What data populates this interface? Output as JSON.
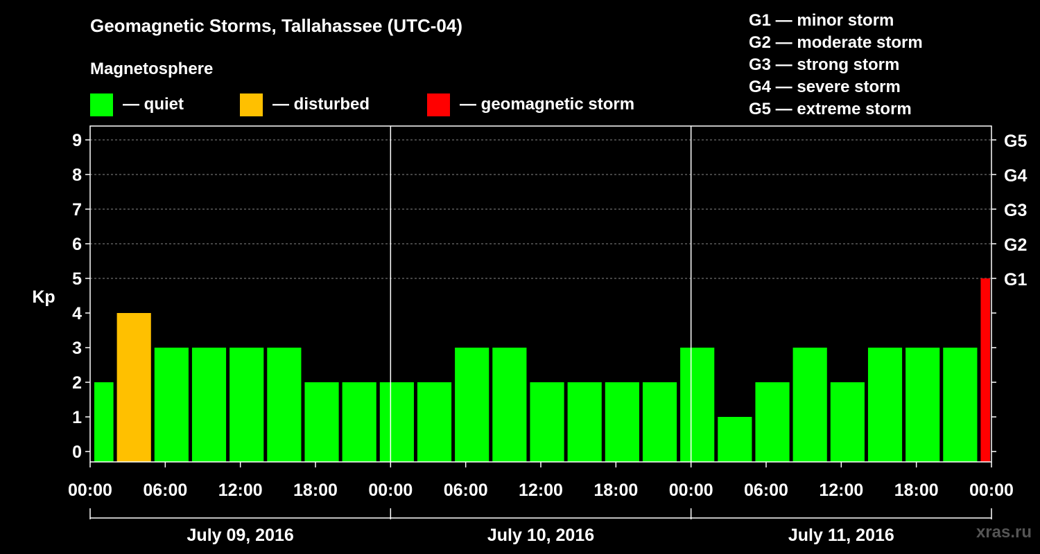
{
  "chart_data": {
    "type": "bar",
    "title": "Geomagnetic Storms, Tallahassee (UTC-04)",
    "subtitle": "Magnetosphere",
    "ylabel": "Kp",
    "ylim": [
      0,
      9
    ],
    "y_ticks": [
      "0",
      "1",
      "2",
      "3",
      "4",
      "5",
      "6",
      "7",
      "8",
      "9"
    ],
    "right_ticks": [
      {
        "kp": 5,
        "label": "G1"
      },
      {
        "kp": 6,
        "label": "G2"
      },
      {
        "kp": 7,
        "label": "G3"
      },
      {
        "kp": 8,
        "label": "G4"
      },
      {
        "kp": 9,
        "label": "G5"
      }
    ],
    "grid": true,
    "legend": [
      {
        "label": "— quiet",
        "color": "#00ff00"
      },
      {
        "label": "— disturbed",
        "color": "#ffc000"
      },
      {
        "label": "— geomagnetic storm",
        "color": "#ff0000"
      }
    ],
    "storm_scale": [
      "G1 — minor storm",
      "G2 — moderate storm",
      "G3 — strong storm",
      "G4 — severe storm",
      "G5 — extreme storm"
    ],
    "x_hour_range": [
      0,
      72
    ],
    "x_ticks": [
      {
        "hour": 0,
        "label": "00:00"
      },
      {
        "hour": 6,
        "label": "06:00"
      },
      {
        "hour": 12,
        "label": "12:00"
      },
      {
        "hour": 18,
        "label": "18:00"
      },
      {
        "hour": 24,
        "label": "00:00"
      },
      {
        "hour": 30,
        "label": "06:00"
      },
      {
        "hour": 36,
        "label": "12:00"
      },
      {
        "hour": 42,
        "label": "18:00"
      },
      {
        "hour": 48,
        "label": "00:00"
      },
      {
        "hour": 54,
        "label": "06:00"
      },
      {
        "hour": 60,
        "label": "12:00"
      },
      {
        "hour": 66,
        "label": "18:00"
      },
      {
        "hour": 72,
        "label": "00:00"
      }
    ],
    "days": [
      {
        "label": "July 09, 2016",
        "start": 0,
        "end": 24
      },
      {
        "label": "July 10, 2016",
        "start": 24,
        "end": 48
      },
      {
        "label": "July 11, 2016",
        "start": 48,
        "end": 72
      }
    ],
    "bars": [
      {
        "start": 0,
        "end": 2,
        "kp": 2,
        "status": "quiet"
      },
      {
        "start": 2,
        "end": 5,
        "kp": 4,
        "status": "disturbed"
      },
      {
        "start": 5,
        "end": 8,
        "kp": 3,
        "status": "quiet"
      },
      {
        "start": 8,
        "end": 11,
        "kp": 3,
        "status": "quiet"
      },
      {
        "start": 11,
        "end": 14,
        "kp": 3,
        "status": "quiet"
      },
      {
        "start": 14,
        "end": 17,
        "kp": 3,
        "status": "quiet"
      },
      {
        "start": 17,
        "end": 20,
        "kp": 2,
        "status": "quiet"
      },
      {
        "start": 20,
        "end": 23,
        "kp": 2,
        "status": "quiet"
      },
      {
        "start": 23,
        "end": 26,
        "kp": 2,
        "status": "quiet"
      },
      {
        "start": 26,
        "end": 29,
        "kp": 2,
        "status": "quiet"
      },
      {
        "start": 29,
        "end": 32,
        "kp": 3,
        "status": "quiet"
      },
      {
        "start": 32,
        "end": 35,
        "kp": 3,
        "status": "quiet"
      },
      {
        "start": 35,
        "end": 38,
        "kp": 2,
        "status": "quiet"
      },
      {
        "start": 38,
        "end": 41,
        "kp": 2,
        "status": "quiet"
      },
      {
        "start": 41,
        "end": 44,
        "kp": 2,
        "status": "quiet"
      },
      {
        "start": 44,
        "end": 47,
        "kp": 2,
        "status": "quiet"
      },
      {
        "start": 47,
        "end": 50,
        "kp": 3,
        "status": "quiet"
      },
      {
        "start": 50,
        "end": 53,
        "kp": 1,
        "status": "quiet"
      },
      {
        "start": 53,
        "end": 56,
        "kp": 2,
        "status": "quiet"
      },
      {
        "start": 56,
        "end": 59,
        "kp": 3,
        "status": "quiet"
      },
      {
        "start": 59,
        "end": 62,
        "kp": 2,
        "status": "quiet"
      },
      {
        "start": 62,
        "end": 65,
        "kp": 3,
        "status": "quiet"
      },
      {
        "start": 65,
        "end": 68,
        "kp": 3,
        "status": "quiet"
      },
      {
        "start": 68,
        "end": 71,
        "kp": 3,
        "status": "quiet"
      },
      {
        "start": 71,
        "end": 72,
        "kp": 5,
        "status": "storm"
      }
    ],
    "status_colors": {
      "quiet": "#00ff00",
      "disturbed": "#ffc000",
      "storm": "#ff0000"
    }
  },
  "watermark": "xras.ru"
}
